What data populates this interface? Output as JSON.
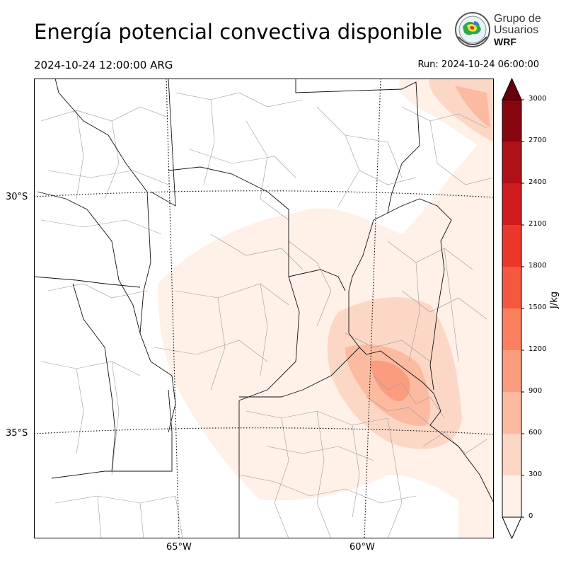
{
  "title": "Energía potencial convectiva disponible",
  "valid_time": "2024-10-24 12:00:00 ARG",
  "run_time": "Run: 2024-10-24 06:00:00",
  "logo": {
    "line1": "Grupo de",
    "line2": "Usuarios",
    "line3": "WRF"
  },
  "map": {
    "lat_labels": [
      "30°S",
      "35°S"
    ],
    "lon_labels": [
      "65°W",
      "60°W"
    ]
  },
  "colorbar": {
    "unit": "J/kg",
    "ticks": [
      "0",
      "300",
      "600",
      "900",
      "1200",
      "1500",
      "1800",
      "2100",
      "2400",
      "2700",
      "3000"
    ],
    "colors": [
      "#fff0e8",
      "#fdd7c6",
      "#fcbba1",
      "#fc9c7e",
      "#fb7f5f",
      "#f6583f",
      "#eb372a",
      "#d01c1f",
      "#af1117",
      "#87050f",
      "#67000d"
    ]
  }
}
